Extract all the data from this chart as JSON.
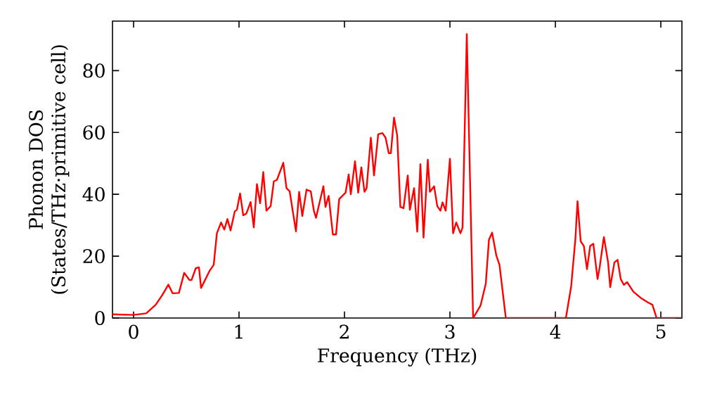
{
  "chart_data": {
    "type": "line",
    "xlabel": "Frequency (THz)",
    "ylabel": "Phonon DOS (States/THz·primitive cell)",
    "xlim": [
      -0.2,
      5.2
    ],
    "ylim": [
      0,
      96
    ],
    "xticks": [
      0,
      1,
      2,
      3,
      4,
      5
    ],
    "yticks": [
      0,
      20,
      40,
      60,
      80
    ],
    "color": "#ff0000",
    "line_style": "solid",
    "x": [
      -0.2,
      0,
      0.12,
      0.21,
      0.27,
      0.33,
      0.37,
      0.43,
      0.48,
      0.53,
      0.55,
      0.59,
      0.62,
      0.64,
      0.72,
      0.76,
      0.79,
      0.83,
      0.86,
      0.89,
      0.92,
      0.96,
      0.98,
      1.01,
      1.04,
      1.07,
      1.11,
      1.14,
      1.17,
      1.2,
      1.23,
      1.26,
      1.3,
      1.33,
      1.36,
      1.42,
      1.45,
      1.48,
      1.54,
      1.57,
      1.6,
      1.64,
      1.68,
      1.71,
      1.73,
      1.8,
      1.82,
      1.85,
      1.89,
      1.92,
      1.95,
      2.01,
      2.04,
      2.06,
      2.1,
      2.13,
      2.16,
      2.19,
      2.21,
      2.25,
      2.28,
      2.32,
      2.36,
      2.39,
      2.42,
      2.44,
      2.47,
      2.5,
      2.53,
      2.56,
      2.6,
      2.62,
      2.66,
      2.69,
      2.72,
      2.75,
      2.79,
      2.81,
      2.85,
      2.88,
      2.91,
      2.93,
      2.96,
      3.0,
      3.03,
      3.06,
      3.1,
      3.12,
      3.16,
      3.22,
      3.29,
      3.34,
      3.37,
      3.4,
      3.44,
      3.47,
      3.53,
      4.1,
      4.15,
      4.19,
      4.21,
      4.24,
      4.27,
      4.3,
      4.33,
      4.36,
      4.4,
      4.42,
      4.46,
      4.5,
      4.52,
      4.56,
      4.59,
      4.62,
      4.65,
      4.68,
      4.74,
      4.81,
      4.88,
      4.92,
      4.96,
      5.2
    ],
    "values": [
      1.2,
      1,
      1.5,
      4.3,
      7.3,
      10.8,
      8,
      8.1,
      14.6,
      12.3,
      12.3,
      16.1,
      16.4,
      9.7,
      15.2,
      17.2,
      27.4,
      30.9,
      28.6,
      32,
      28.3,
      34.5,
      35,
      40.3,
      33.2,
      33.8,
      37.5,
      29.3,
      43.3,
      37.1,
      47.2,
      34.7,
      36.2,
      44.2,
      44.7,
      50.2,
      42,
      41,
      28,
      40.8,
      33,
      41.5,
      41,
      34.7,
      32.4,
      42.6,
      35.9,
      39.5,
      27,
      27,
      38.5,
      40.5,
      46.4,
      40,
      50.7,
      40.5,
      48.7,
      40.8,
      42,
      58.3,
      46.1,
      59.4,
      59.8,
      58.3,
      53.3,
      53.3,
      64.8,
      59,
      35.9,
      35.5,
      46.1,
      35,
      42,
      27.9,
      49.7,
      26,
      51.2,
      40.8,
      42.6,
      36.2,
      34.7,
      37.4,
      34.7,
      51.5,
      27.4,
      30.9,
      27.4,
      29.3,
      91.8,
      0,
      4,
      11.1,
      25.3,
      27.6,
      20.2,
      17.2,
      0,
      0,
      10.3,
      25.6,
      37.8,
      24.8,
      23.3,
      15.8,
      23.3,
      24,
      12.6,
      16.4,
      26.2,
      18,
      10,
      18,
      18.8,
      12.6,
      10.7,
      11.6,
      8.5,
      6.5,
      5,
      4.3,
      0,
      0
    ]
  }
}
